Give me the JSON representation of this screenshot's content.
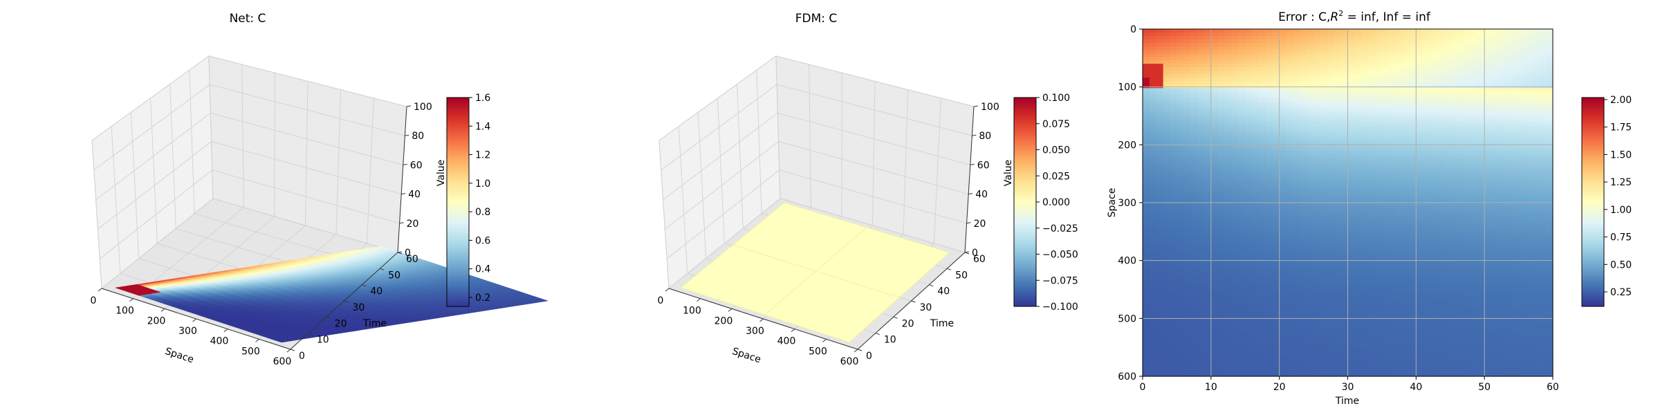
{
  "colormap": "RdYlBu_r",
  "chart_data": [
    {
      "type": "surface3d",
      "title": "Net: C",
      "xlabel": "Space",
      "ylabel": "Time",
      "zlabel": "",
      "xlim": [
        0,
        600
      ],
      "ylim": [
        0,
        60
      ],
      "zlim": [
        0,
        100
      ],
      "xticks": [
        "0",
        "100",
        "200",
        "300",
        "400",
        "500",
        "600"
      ],
      "yticks": [
        "0",
        "10",
        "20",
        "30",
        "40",
        "50",
        "60"
      ],
      "zticks": [
        "0",
        "20",
        "40",
        "60",
        "80",
        "100"
      ],
      "colorbar": {
        "label": "Value",
        "range": [
          0.02,
          1.6
        ],
        "ticks": [
          "0.2",
          "0.4",
          "0.6",
          "0.8",
          "1.0",
          "1.2",
          "1.4",
          "1.6"
        ]
      }
    },
    {
      "type": "surface3d",
      "title": "FDM: C",
      "xlabel": "Space",
      "ylabel": "Time",
      "zlabel": "",
      "xlim": [
        0,
        600
      ],
      "ylim": [
        0,
        60
      ],
      "zlim": [
        0,
        100
      ],
      "surface_value": 0.0,
      "xticks": [
        "0",
        "100",
        "200",
        "300",
        "400",
        "500",
        "600"
      ],
      "yticks": [
        "0",
        "10",
        "20",
        "30",
        "40",
        "50",
        "60"
      ],
      "zticks": [
        "0",
        "20",
        "40",
        "60",
        "80",
        "100"
      ],
      "colorbar": {
        "label": "Value",
        "range": [
          -0.1,
          0.1
        ],
        "ticks": [
          "0.100",
          "0.075",
          "0.050",
          "0.025",
          "0.000",
          "−0.025",
          "−0.050",
          "−0.075",
          "−0.100"
        ]
      }
    },
    {
      "type": "heatmap",
      "title_prefix": "Error : C,",
      "title_r": "R",
      "title_sup": "2",
      "title_suffix": " = inf, Inf = inf",
      "xlabel": "Time",
      "ylabel": "Space",
      "xlim": [
        0,
        60
      ],
      "ylim": [
        600,
        0
      ],
      "xticks": [
        "0",
        "10",
        "20",
        "30",
        "40",
        "50",
        "60"
      ],
      "yticks": [
        "0",
        "100",
        "200",
        "300",
        "400",
        "500",
        "600"
      ],
      "grid": true,
      "colorbar": {
        "range": [
          0.02,
          2.05
        ],
        "ticks": [
          "2.00",
          "1.75",
          "1.50",
          "1.25",
          "1.00",
          "0.75",
          "0.50",
          "0.25"
        ]
      }
    }
  ]
}
